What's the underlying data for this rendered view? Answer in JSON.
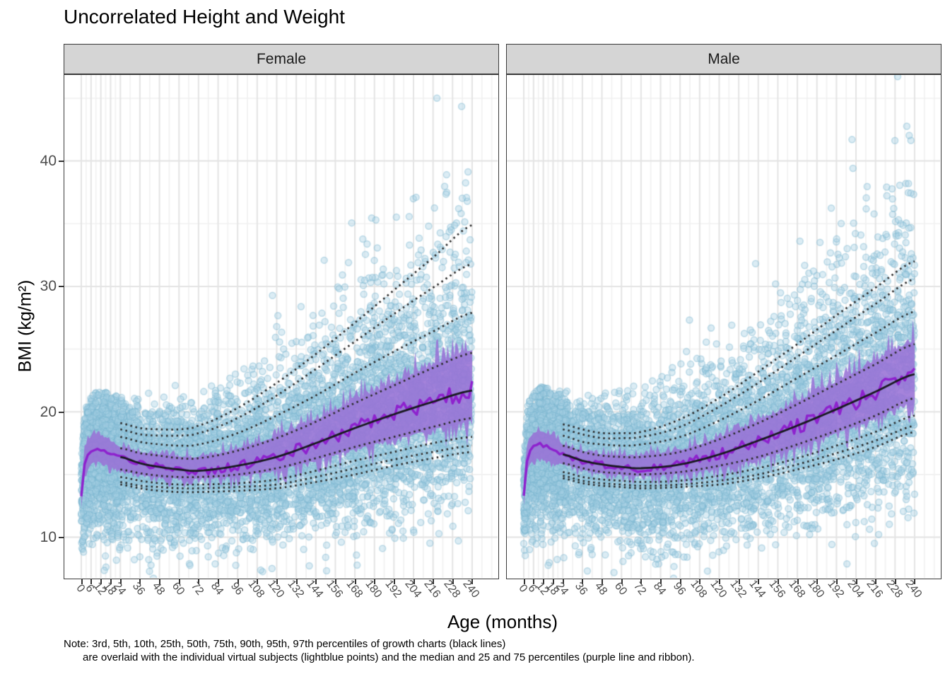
{
  "title": "Uncorrelated Height and Weight",
  "x_axis": {
    "label": "Age (months)",
    "ticks": [
      0,
      6,
      12,
      18,
      24,
      36,
      48,
      60,
      72,
      84,
      96,
      108,
      120,
      132,
      144,
      156,
      168,
      180,
      192,
      204,
      216,
      228,
      240
    ]
  },
  "y_axis": {
    "label": "BMI (kg/m²)",
    "ticks": [
      10,
      20,
      30,
      40
    ]
  },
  "note": {
    "line1": "Note: 3rd, 5th, 10th, 25th, 50th, 75th, 90th, 95th, 97th percentiles of growth charts (black lines)",
    "line2": "are overlaid with the individual virtual subjects (lightblue points) and the median and 25 and 75 percentiles (purple line and ribbon)."
  },
  "colors": {
    "point_fill": "rgba(164,208,227,0.40)",
    "point_stroke": "rgba(122,181,208,0.42)",
    "ribbon": "rgba(152,114,214,0.88)",
    "median_line": "#8E22CE",
    "growth_solid": "#1A1A22",
    "growth_dotted": "#2D2D2D",
    "grid_major": "#E4E4E4",
    "grid_minor": "#F1F1F1",
    "strip_bg": "#D5D5D5",
    "panel_border": "#3A3A3A",
    "axis_text": "#4D4D4D"
  },
  "chart_data": {
    "type": "scatter",
    "title": "Uncorrelated Height and Weight",
    "xlabel": "Age (months)",
    "ylabel": "BMI (kg/m²)",
    "x_breaks": [
      0,
      6,
      12,
      18,
      24,
      36,
      48,
      60,
      72,
      84,
      96,
      108,
      120,
      132,
      144,
      156,
      168,
      180,
      192,
      204,
      216,
      228,
      240
    ],
    "y_breaks": [
      10,
      20,
      30,
      40
    ],
    "y_minor_breaks": [
      15,
      25,
      35,
      45
    ],
    "x_domain": [
      -10.5,
      255.6
    ],
    "y_domain": [
      6.8,
      46.9
    ],
    "percentile_labels": [
      "3rd",
      "5th",
      "10th",
      "25th",
      "50th",
      "75th",
      "90th",
      "95th",
      "97th"
    ],
    "growth_ages": [
      24,
      36,
      48,
      60,
      72,
      96,
      120,
      144,
      168,
      192,
      216,
      240
    ],
    "median_ages": [
      0,
      2,
      4,
      6,
      9,
      12,
      18,
      24,
      36,
      48,
      60,
      72,
      96,
      120,
      144,
      168,
      192,
      216,
      240
    ],
    "facets": [
      {
        "label": "Female",
        "growth": {
          "P3": [
            14.2,
            13.9,
            13.7,
            13.6,
            13.6,
            13.7,
            13.9,
            14.4,
            15.0,
            15.7,
            16.3,
            16.8
          ],
          "P5": [
            14.4,
            14.1,
            14.0,
            13.9,
            13.9,
            14.0,
            14.2,
            14.8,
            15.5,
            16.2,
            16.8,
            17.3
          ],
          "P10": [
            14.8,
            14.5,
            14.3,
            14.2,
            14.2,
            14.3,
            14.6,
            15.3,
            16.1,
            16.8,
            17.5,
            18.0
          ],
          "P25": [
            15.4,
            15.1,
            14.9,
            14.8,
            14.8,
            15.0,
            15.5,
            16.3,
            17.2,
            18.0,
            18.8,
            19.5
          ],
          "P50": [
            16.4,
            15.9,
            15.6,
            15.4,
            15.3,
            15.7,
            16.4,
            17.5,
            18.7,
            19.8,
            20.8,
            21.7
          ],
          "P75": [
            17.1,
            16.7,
            16.5,
            16.3,
            16.3,
            16.9,
            17.9,
            19.2,
            20.7,
            22.1,
            23.5,
            24.7
          ],
          "P90": [
            18.0,
            17.6,
            17.4,
            17.3,
            17.4,
            18.3,
            19.7,
            21.3,
            23.1,
            24.8,
            26.4,
            27.9
          ],
          "P95": [
            18.6,
            18.2,
            18.1,
            18.1,
            18.3,
            19.5,
            21.3,
            23.4,
            25.6,
            27.8,
            29.9,
            31.8
          ],
          "P97": [
            19.1,
            18.7,
            18.6,
            18.6,
            18.9,
            20.3,
            22.3,
            24.6,
            27.1,
            29.7,
            32.3,
            34.9
          ]
        },
        "virtual": {
          "median": [
            13.2,
            15.8,
            16.6,
            16.9,
            17.1,
            17.0,
            16.7,
            16.4,
            15.9,
            15.6,
            15.4,
            15.3,
            15.7,
            16.4,
            17.5,
            18.7,
            19.8,
            20.8,
            21.7
          ],
          "q25": [
            12.4,
            14.9,
            15.6,
            15.9,
            16.1,
            16.0,
            15.7,
            15.4,
            15.1,
            14.9,
            14.8,
            14.8,
            15.0,
            15.5,
            16.3,
            17.2,
            18.0,
            18.8,
            19.5
          ],
          "q75": [
            14.1,
            16.8,
            17.6,
            17.9,
            18.1,
            18.0,
            17.6,
            17.1,
            16.7,
            16.5,
            16.3,
            16.3,
            16.9,
            17.9,
            19.2,
            20.7,
            22.1,
            23.5,
            24.7
          ]
        },
        "points": {
          "count": 6000,
          "extra_young": 800,
          "seed": 101,
          "sigma_base": 0.16,
          "sigma_slope": 0.0004,
          "skew": 0.03
        }
      },
      {
        "label": "Male",
        "growth": {
          "P3": [
            14.7,
            14.3,
            14.1,
            14.0,
            13.9,
            14.0,
            14.2,
            14.7,
            15.4,
            16.2,
            17.2,
            18.4
          ],
          "P5": [
            14.9,
            14.5,
            14.3,
            14.2,
            14.1,
            14.2,
            14.5,
            15.0,
            15.8,
            16.7,
            17.7,
            18.9
          ],
          "P10": [
            15.2,
            14.8,
            14.6,
            14.5,
            14.4,
            14.5,
            14.9,
            15.5,
            16.3,
            17.3,
            18.4,
            19.7
          ],
          "P25": [
            15.9,
            15.5,
            15.2,
            15.1,
            15.0,
            15.2,
            15.7,
            16.4,
            17.4,
            18.5,
            19.7,
            21.1
          ],
          "P50": [
            16.6,
            16.1,
            15.8,
            15.6,
            15.5,
            15.8,
            16.6,
            17.7,
            18.9,
            20.2,
            21.6,
            23.0
          ],
          "P75": [
            17.3,
            16.8,
            16.5,
            16.4,
            16.4,
            16.8,
            17.8,
            19.1,
            20.6,
            22.2,
            23.8,
            25.4
          ],
          "P90": [
            18.1,
            17.6,
            17.4,
            17.3,
            17.4,
            18.0,
            19.3,
            20.9,
            22.7,
            24.5,
            26.3,
            28.0
          ],
          "P95": [
            18.6,
            18.2,
            17.9,
            17.9,
            18.0,
            18.8,
            20.4,
            22.3,
            24.4,
            26.5,
            28.6,
            30.6
          ],
          "P97": [
            19.0,
            18.6,
            18.3,
            18.3,
            18.4,
            19.4,
            21.1,
            23.2,
            25.4,
            27.7,
            29.9,
            32.0
          ]
        },
        "virtual": {
          "median": [
            13.4,
            16.1,
            16.9,
            17.2,
            17.4,
            17.3,
            16.9,
            16.6,
            16.1,
            15.8,
            15.6,
            15.5,
            15.8,
            16.6,
            17.7,
            18.9,
            20.2,
            21.6,
            23.0
          ],
          "q25": [
            12.6,
            15.2,
            15.9,
            16.2,
            16.4,
            16.3,
            16.0,
            15.9,
            15.5,
            15.2,
            15.1,
            15.0,
            15.2,
            15.7,
            16.4,
            17.4,
            18.5,
            19.7,
            21.1
          ],
          "q75": [
            14.3,
            17.1,
            17.9,
            18.2,
            18.4,
            18.3,
            17.9,
            17.3,
            16.8,
            16.5,
            16.4,
            16.4,
            16.8,
            17.8,
            19.1,
            20.6,
            22.2,
            23.8,
            25.4
          ]
        },
        "points": {
          "count": 6000,
          "extra_young": 800,
          "seed": 202,
          "sigma_base": 0.16,
          "sigma_slope": 0.0004,
          "skew": 0.03
        }
      }
    ]
  }
}
